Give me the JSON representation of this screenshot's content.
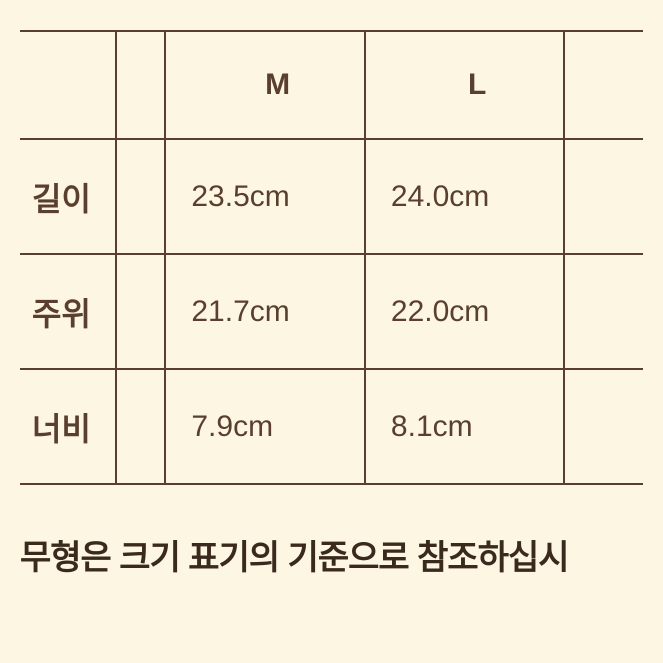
{
  "table": {
    "border_color": "#5a3f2e",
    "text_color": "#5a3f2e",
    "background_color": "#fdf6e3",
    "font_size_cell": 30,
    "font_size_label": 32,
    "border_width": 2,
    "columns": [
      "",
      "",
      "M",
      "L",
      ""
    ],
    "rows": [
      {
        "label": "길이",
        "m": "23.5cm",
        "l": "24.0cm"
      },
      {
        "label": "주위",
        "m": "21.7cm",
        "l": "22.0cm"
      },
      {
        "label": "너비",
        "m": "7.9cm",
        "l": "8.1cm"
      }
    ]
  },
  "footer": {
    "text": "무형은 크기 표기의 기준으로 참조하십시",
    "font_size": 34,
    "font_weight": "bold",
    "color": "#3a2a1e"
  }
}
